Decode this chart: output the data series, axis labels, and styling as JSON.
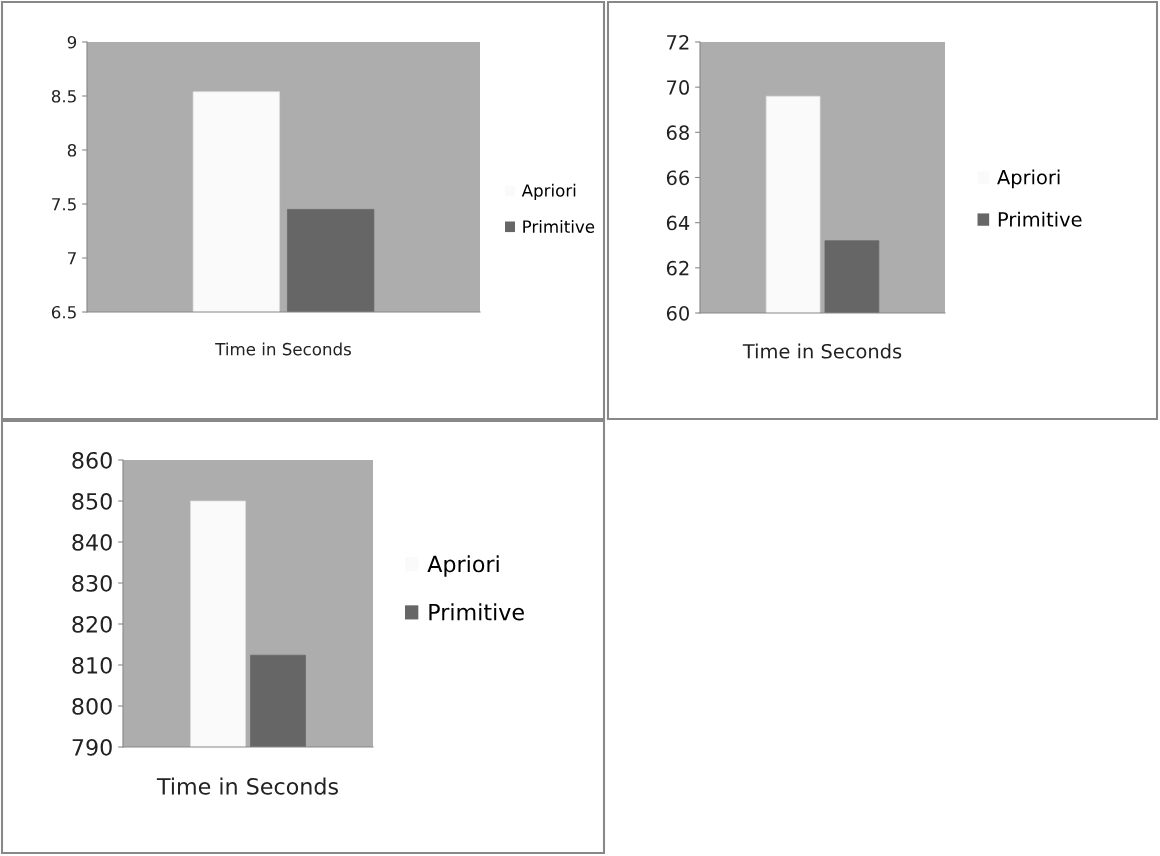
{
  "chart_data": [
    {
      "type": "bar",
      "categories": [
        "Time in Seconds"
      ],
      "ylim": [
        6.5,
        9
      ],
      "yticks": [
        6.5,
        7,
        7.5,
        8,
        8.5,
        9
      ],
      "grid": false,
      "legend": "right",
      "series": [
        {
          "name": "Apriori",
          "color": "#fafafa",
          "values": [
            8.54
          ]
        },
        {
          "name": "Primitive",
          "color": "#666666",
          "values": [
            7.45
          ]
        }
      ]
    },
    {
      "type": "bar",
      "categories": [
        "Time in Seconds"
      ],
      "ylim": [
        60,
        72
      ],
      "yticks": [
        60,
        62,
        64,
        66,
        68,
        70,
        72
      ],
      "grid": false,
      "legend": "right",
      "series": [
        {
          "name": "Apriori",
          "color": "#fafafa",
          "values": [
            69.6
          ]
        },
        {
          "name": "Primitive",
          "color": "#666666",
          "values": [
            63.2
          ]
        }
      ]
    },
    {
      "type": "bar",
      "categories": [
        "Time in Seconds"
      ],
      "ylim": [
        790,
        860
      ],
      "yticks": [
        790,
        800,
        810,
        820,
        830,
        840,
        850,
        860
      ],
      "grid": false,
      "legend": "right",
      "series": [
        {
          "name": "Apriori",
          "color": "#fafafa",
          "values": [
            850
          ]
        },
        {
          "name": "Primitive",
          "color": "#666666",
          "values": [
            812.4
          ]
        }
      ]
    }
  ]
}
